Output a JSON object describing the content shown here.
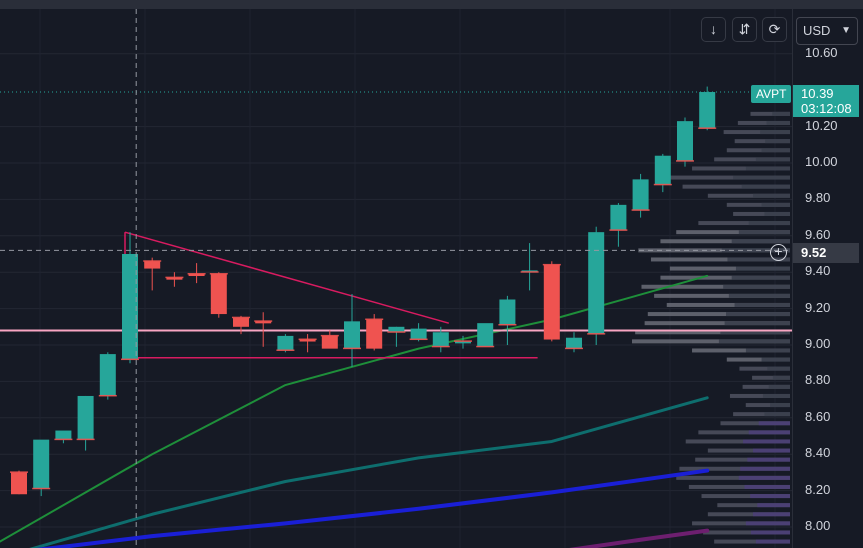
{
  "toolbar": {
    "currency": "USD",
    "icons": [
      "arrow-down-icon",
      "collapse-icon",
      "replay-icon"
    ]
  },
  "symbol": "AVPT",
  "last_price": "10.39",
  "countdown": "03:12:08",
  "crosshair_price": "9.52",
  "colors": {
    "up": "#26a69a",
    "down": "#ef5350",
    "ma_fast": "#1e8f3a",
    "ma_mid": "#0e6e6e",
    "ma_slow": "#1a1fd6",
    "ma_long": "#6d1f6f",
    "triangle": "#d81b60",
    "support": "#f8a5c2",
    "volume_profile": "#5d606b"
  },
  "chart_data": {
    "type": "candlestick",
    "y_range": [
      7.9,
      10.72
    ],
    "y_ticks": [
      "10.60",
      "10.20",
      "10.00",
      "9.80",
      "9.60",
      "9.40",
      "9.20",
      "9.00",
      "8.80",
      "8.60",
      "8.40",
      "8.20",
      "8.00"
    ],
    "y_tick_values": [
      10.6,
      10.2,
      10.0,
      9.8,
      9.6,
      9.4,
      9.2,
      9.0,
      8.8,
      8.6,
      8.4,
      8.2,
      8.0
    ],
    "candles": [
      {
        "o": 8.3,
        "h": 8.31,
        "l": 8.18,
        "c": 8.18
      },
      {
        "o": 8.21,
        "h": 8.47,
        "l": 8.17,
        "c": 8.48
      },
      {
        "o": 8.48,
        "h": 8.52,
        "l": 8.46,
        "c": 8.53
      },
      {
        "o": 8.48,
        "h": 8.72,
        "l": 8.42,
        "c": 8.72
      },
      {
        "o": 8.72,
        "h": 8.96,
        "l": 8.7,
        "c": 8.95
      },
      {
        "o": 8.92,
        "h": 9.62,
        "l": 8.9,
        "c": 9.5
      },
      {
        "o": 9.46,
        "h": 9.48,
        "l": 9.3,
        "c": 9.42
      },
      {
        "o": 9.37,
        "h": 9.4,
        "l": 9.32,
        "c": 9.36
      },
      {
        "o": 9.39,
        "h": 9.45,
        "l": 9.34,
        "c": 9.38
      },
      {
        "o": 9.39,
        "h": 9.4,
        "l": 9.15,
        "c": 9.17
      },
      {
        "o": 9.15,
        "h": 9.16,
        "l": 9.06,
        "c": 9.1
      },
      {
        "o": 9.13,
        "h": 9.18,
        "l": 8.99,
        "c": 9.12
      },
      {
        "o": 8.97,
        "h": 9.06,
        "l": 8.96,
        "c": 9.05
      },
      {
        "o": 9.03,
        "h": 9.06,
        "l": 8.96,
        "c": 9.02
      },
      {
        "o": 9.05,
        "h": 9.08,
        "l": 8.99,
        "c": 8.98
      },
      {
        "o": 8.98,
        "h": 9.28,
        "l": 8.88,
        "c": 9.13
      },
      {
        "o": 9.14,
        "h": 9.17,
        "l": 8.97,
        "c": 8.98
      },
      {
        "o": 9.07,
        "h": 9.1,
        "l": 8.99,
        "c": 9.1
      },
      {
        "o": 9.03,
        "h": 9.12,
        "l": 9.02,
        "c": 9.09
      },
      {
        "o": 8.99,
        "h": 9.1,
        "l": 8.96,
        "c": 9.07
      },
      {
        "o": 9.02,
        "h": 9.05,
        "l": 8.98,
        "c": 9.02
      },
      {
        "o": 8.99,
        "h": 9.1,
        "l": 8.99,
        "c": 9.12
      },
      {
        "o": 9.11,
        "h": 9.27,
        "l": 9.0,
        "c": 9.25
      },
      {
        "o": 9.4,
        "h": 9.56,
        "l": 9.3,
        "c": 9.41
      },
      {
        "o": 9.44,
        "h": 9.46,
        "l": 9.02,
        "c": 9.03
      },
      {
        "o": 8.98,
        "h": 9.07,
        "l": 8.96,
        "c": 9.04
      },
      {
        "o": 9.06,
        "h": 9.65,
        "l": 9.0,
        "c": 9.62
      },
      {
        "o": 9.63,
        "h": 9.78,
        "l": 9.54,
        "c": 9.77
      },
      {
        "o": 9.74,
        "h": 9.94,
        "l": 9.7,
        "c": 9.91
      },
      {
        "o": 9.88,
        "h": 10.05,
        "l": 9.84,
        "c": 10.04
      },
      {
        "o": 10.01,
        "h": 10.25,
        "l": 9.98,
        "c": 10.23
      },
      {
        "o": 10.19,
        "h": 10.42,
        "l": 10.18,
        "c": 10.39
      }
    ],
    "moving_averages": [
      {
        "name": "fast",
        "points": [
          [
            0,
            7.92
          ],
          [
            6,
            8.4
          ],
          [
            12,
            8.78
          ],
          [
            18,
            8.98
          ],
          [
            24,
            9.14
          ],
          [
            31,
            9.38
          ]
        ]
      },
      {
        "name": "mid",
        "points": [
          [
            0,
            7.83
          ],
          [
            6,
            8.07
          ],
          [
            12,
            8.25
          ],
          [
            18,
            8.38
          ],
          [
            24,
            8.47
          ],
          [
            31,
            8.71
          ]
        ]
      },
      {
        "name": "slow",
        "points": [
          [
            0,
            7.85
          ],
          [
            6,
            7.95
          ],
          [
            12,
            8.02
          ],
          [
            18,
            8.1
          ],
          [
            24,
            8.19
          ],
          [
            31,
            8.31
          ]
        ]
      },
      {
        "name": "long",
        "points": [
          [
            24,
            7.86
          ],
          [
            28,
            7.93
          ],
          [
            31,
            7.98
          ]
        ]
      }
    ],
    "triangle": {
      "apex": [
        5,
        9.62
      ],
      "end": [
        19,
        9.12
      ],
      "base_level": 8.93,
      "base_end": 23
    },
    "support_level": 9.08,
    "last_level": 10.39,
    "crosshair_level": 9.52,
    "crosshair_index": 6,
    "volume_profile": [
      [
        10.27,
        0.25
      ],
      [
        10.22,
        0.33
      ],
      [
        10.17,
        0.42
      ],
      [
        10.12,
        0.35
      ],
      [
        10.07,
        0.4
      ],
      [
        10.02,
        0.48
      ],
      [
        9.97,
        0.62
      ],
      [
        9.92,
        0.8
      ],
      [
        9.87,
        0.68
      ],
      [
        9.82,
        0.52
      ],
      [
        9.77,
        0.4
      ],
      [
        9.72,
        0.36
      ],
      [
        9.67,
        0.58
      ],
      [
        9.62,
        0.72
      ],
      [
        9.57,
        0.82
      ],
      [
        9.52,
        0.96
      ],
      [
        9.47,
        0.88
      ],
      [
        9.42,
        0.76
      ],
      [
        9.37,
        0.82
      ],
      [
        9.32,
        0.94
      ],
      [
        9.27,
        0.86
      ],
      [
        9.22,
        0.78
      ],
      [
        9.17,
        0.9
      ],
      [
        9.12,
        0.92
      ],
      [
        9.07,
        0.98
      ],
      [
        9.02,
        1.0
      ],
      [
        8.97,
        0.62
      ],
      [
        8.92,
        0.4
      ],
      [
        8.87,
        0.32
      ],
      [
        8.82,
        0.24
      ],
      [
        8.77,
        0.3
      ],
      [
        8.72,
        0.38
      ],
      [
        8.67,
        0.28
      ],
      [
        8.62,
        0.36
      ],
      [
        8.57,
        0.44
      ],
      [
        8.52,
        0.58
      ],
      [
        8.47,
        0.66
      ],
      [
        8.42,
        0.52
      ],
      [
        8.37,
        0.6
      ],
      [
        8.32,
        0.7
      ],
      [
        8.27,
        0.72
      ],
      [
        8.22,
        0.64
      ],
      [
        8.17,
        0.56
      ],
      [
        8.12,
        0.46
      ],
      [
        8.07,
        0.52
      ],
      [
        8.02,
        0.62
      ],
      [
        7.97,
        0.55
      ],
      [
        7.92,
        0.48
      ]
    ]
  }
}
